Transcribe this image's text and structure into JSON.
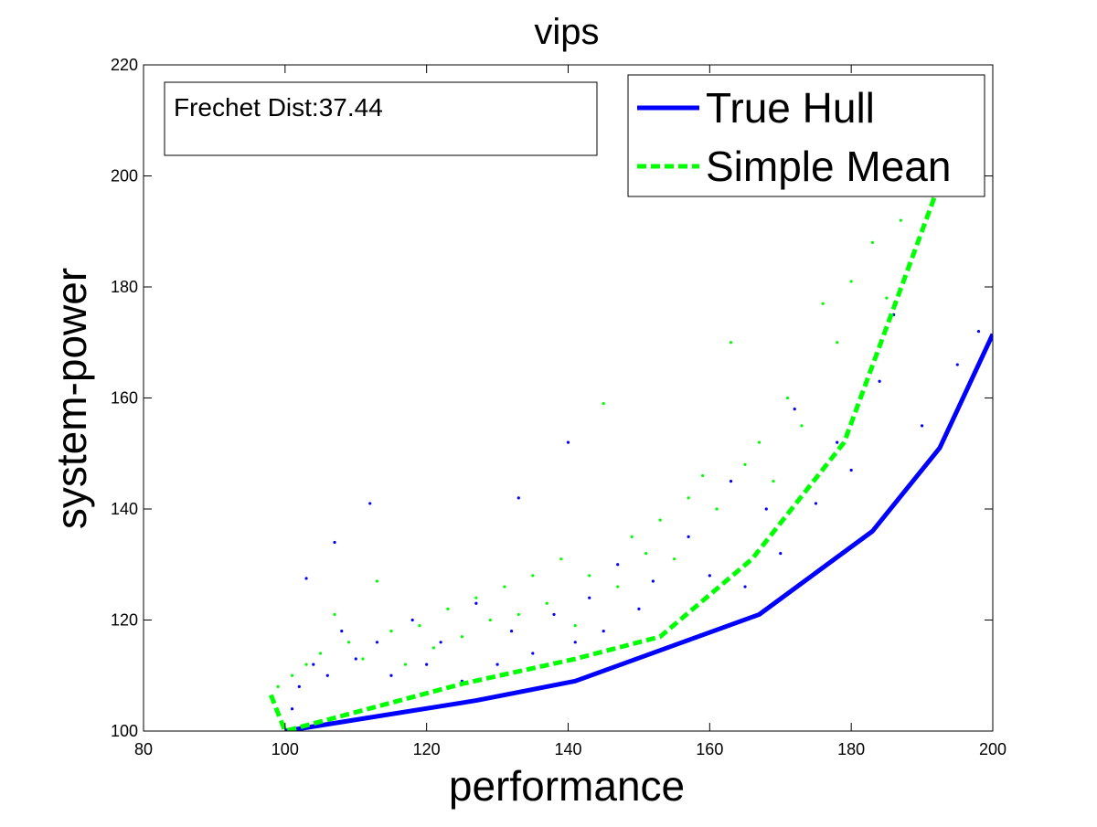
{
  "chart_data": {
    "type": "line",
    "title": "vips",
    "x_label": "performance",
    "y_label": "system-power",
    "annotation": "Frechet Dist:37.44",
    "xlim": [
      80,
      200
    ],
    "xticks": [
      80,
      100,
      120,
      140,
      160,
      180,
      200
    ],
    "ylim": [
      100,
      220
    ],
    "yticks": [
      100,
      120,
      140,
      160,
      180,
      200,
      220
    ],
    "legend": "upper right",
    "series": [
      {
        "name": "True Hull",
        "color": "#0000ff",
        "style": "solid",
        "x": [
          100,
          127,
          141,
          167,
          183,
          192.5,
          200
        ],
        "values": [
          100,
          105.5,
          109,
          121,
          136,
          151,
          171.5
        ]
      },
      {
        "name": "Simple Mean",
        "color": "#00ff00",
        "style": "dashed",
        "x": [
          98,
          100,
          125,
          141,
          153,
          166,
          179,
          192,
          194
        ],
        "values": [
          106.5,
          100,
          108.5,
          113,
          117,
          131,
          152,
          197,
          201
        ]
      },
      {
        "color": "#0000ff",
        "style": "dots",
        "x": [
          101,
          102,
          103,
          104,
          106,
          107,
          108,
          110,
          112,
          113,
          115,
          118,
          120,
          122,
          125,
          127,
          130,
          132,
          133,
          135,
          138,
          140,
          141,
          143,
          145,
          147,
          150,
          152,
          155,
          157,
          160,
          163,
          165,
          168,
          170,
          172,
          175,
          178,
          180,
          184,
          186,
          190,
          195,
          198
        ],
        "values": [
          104,
          108,
          127.5,
          112,
          110,
          134,
          118,
          113,
          141,
          116,
          110,
          120,
          112,
          116,
          109,
          123,
          112,
          118,
          142,
          114,
          121,
          152,
          116,
          124,
          118,
          130,
          122,
          127,
          119,
          135,
          128,
          145,
          126,
          140,
          132,
          158,
          141,
          152,
          147,
          163,
          175,
          155,
          166,
          172
        ]
      },
      {
        "color": "#00ff00",
        "style": "dots",
        "x": [
          99,
          101,
          103,
          105,
          107,
          109,
          111,
          113,
          115,
          117,
          119,
          121,
          123,
          125,
          127,
          129,
          131,
          133,
          135,
          137,
          139,
          141,
          143,
          145,
          147,
          149,
          151,
          153,
          155,
          157,
          159,
          161,
          163,
          165,
          167,
          169,
          171,
          173,
          176,
          178,
          180,
          183,
          185,
          187
        ],
        "values": [
          108,
          110,
          112,
          114,
          121,
          116,
          113,
          127,
          118,
          112,
          119,
          115,
          122,
          117,
          124,
          120,
          126,
          121,
          128,
          123,
          131,
          119,
          128,
          159,
          126,
          135,
          132,
          138,
          131,
          142,
          146,
          140,
          170,
          148,
          152,
          145,
          160,
          155,
          177,
          170,
          181,
          188,
          178,
          192
        ]
      }
    ]
  }
}
